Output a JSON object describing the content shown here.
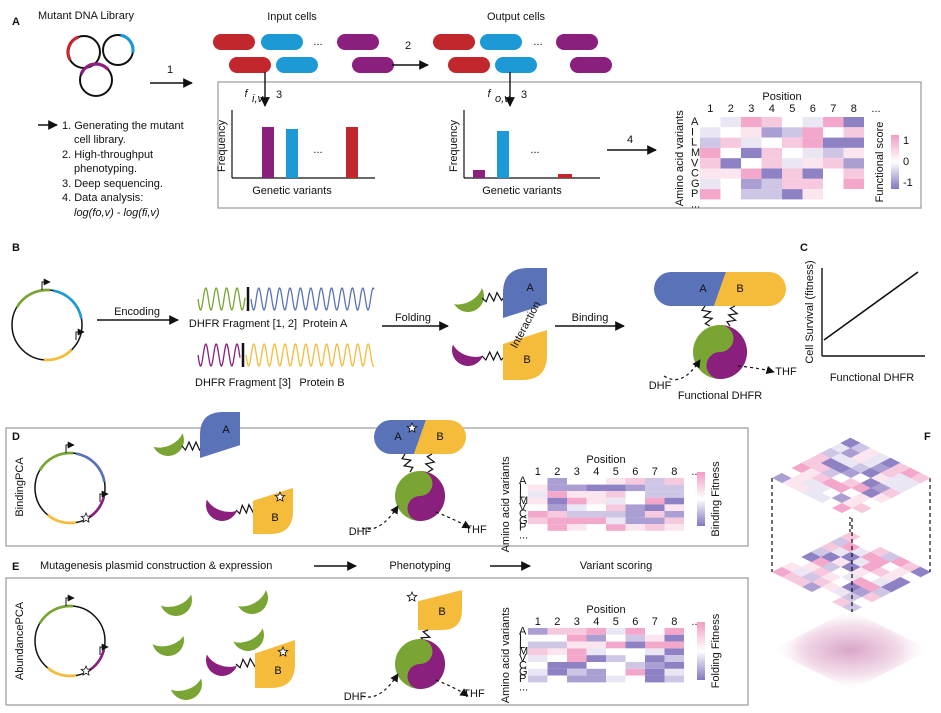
{
  "panel_labels": [
    "A",
    "B",
    "C",
    "D",
    "E",
    "F"
  ],
  "a": {
    "library": "Mutant DNA Library",
    "input_cells": "Input cells",
    "output_cells": "Output cells",
    "cell_ellipses": [
      "...",
      "..."
    ],
    "step_numbers": [
      "1",
      "2",
      "3",
      "3",
      "4"
    ],
    "f_input": {
      "main": "f",
      "sub": "i,v"
    },
    "f_output": {
      "main": "f",
      "sub": "o,v"
    },
    "charts": [
      {
        "y_label": "Frequency",
        "x_label": "Genetic variants",
        "ellipsis": "..."
      },
      {
        "y_label": "Frequency",
        "x_label": "Genetic variants",
        "ellipsis": "..."
      }
    ],
    "legend": {
      "lines": [
        "1. Generating the mutant",
        "cell library.",
        "2. High-throughput",
        "phenotyping.",
        "3. Deep sequencing.",
        "4. Data analysis:"
      ],
      "formula": "log(fo,v) - log(fi,v)"
    }
  },
  "heatmaps": [
    {
      "title": "Position",
      "columns": [
        "1",
        "2",
        "3",
        "4",
        "5",
        "6",
        "7",
        "8",
        "..."
      ],
      "rows": [
        "A",
        "I",
        "L",
        "M",
        "V",
        "C",
        "G",
        "P",
        "..."
      ],
      "y_label": "Amino acid variants",
      "scale_label": "Functional score",
      "scale_ticks": [
        "1",
        "0",
        "-1"
      ]
    },
    {
      "title": "Position",
      "columns": [
        "1",
        "2",
        "3",
        "4",
        "5",
        "6",
        "7",
        "8",
        "..."
      ],
      "rows": [
        "A",
        "I",
        "L",
        "M",
        "V",
        "C",
        "G",
        "P",
        "..."
      ],
      "y_label": "Amino acid variants",
      "scale_label": "Binding Fitness"
    },
    {
      "title": "Position",
      "columns": [
        "1",
        "2",
        "3",
        "4",
        "5",
        "6",
        "7",
        "8",
        "..."
      ],
      "rows": [
        "A",
        "I",
        "L",
        "M",
        "V",
        "C",
        "G",
        "P",
        "..."
      ],
      "y_label": "Amino acid variants",
      "scale_label": "Folding Fitness"
    }
  ],
  "b": {
    "encoding": "Encoding",
    "fragment_12": "DHFR Fragment [1, 2]",
    "protein_a": "Protein A",
    "fragment_3": "DHFR Fragment [3]",
    "protein_b": "Protein B",
    "folding": "Folding",
    "interaction": "Interaction",
    "binding": "Binding",
    "domain_labels": [
      "A",
      "B",
      "A",
      "B"
    ],
    "dhf": "DHF",
    "thf": "THF",
    "complex": "Functional DHFR"
  },
  "c": {
    "y_label": "Cell Survival (fitness)",
    "x_label": "Functional DHFR"
  },
  "d": {
    "label": "BindingPCA",
    "domain_labels": [
      "A",
      "B",
      "A",
      "B"
    ],
    "dhf": "DHF",
    "thf": "THF"
  },
  "e": {
    "header": [
      "Mutagenesis plasmid construction & expression",
      "Phenotyping",
      "Variant scoring"
    ],
    "label": "AbundancePCA",
    "domain_labels": [
      "B",
      "B"
    ],
    "dhf": "DHF",
    "thf": "THF"
  }
}
